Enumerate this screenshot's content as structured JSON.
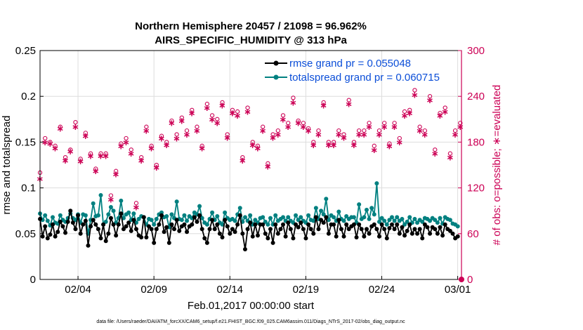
{
  "chart_data": {
    "type": "line",
    "title_line1": "Northern Hemisphere 20457 / 21098 = 96.962%",
    "title_line2": "AIRS_SPECIFIC_HUMIDITY @ 313 hPa",
    "xlabel": "Feb.01,2017 00:00:00 start",
    "ylabel_left": "rmse and totalspread",
    "ylabel_right": "# of obs: o=possible; ∗=evaluated",
    "footer": "data file: /Users/raeder/DAI/ATM_forcXX/CAM6_setup/f.e21.FHIST_BGC.f09_025.CAM6assim.011/Diags_NTrS_2017-02/obs_diag_output.nc",
    "xlim": [
      0.5,
      28.25
    ],
    "ylim_left": [
      0,
      0.25
    ],
    "ylim_right": [
      0,
      300
    ],
    "x_ticks": [
      3,
      8,
      13,
      18,
      23,
      28
    ],
    "x_tick_labels": [
      "02/04",
      "02/09",
      "02/14",
      "02/19",
      "02/24",
      "03/01"
    ],
    "y_ticks_left": [
      0,
      0.05,
      0.1,
      0.15,
      0.2,
      0.25
    ],
    "y_tick_labels_left": [
      "0",
      "0.05",
      "0.1",
      "0.15",
      "0.2",
      "0.25"
    ],
    "y_ticks_right": [
      0,
      60,
      120,
      180,
      240,
      300
    ],
    "y_tick_labels_right": [
      "0",
      "60",
      "120",
      "180",
      "240",
      "300"
    ],
    "colors": {
      "rmse": "#000000",
      "spread": "#008080",
      "obs": "#cc0055",
      "legend_text": "#0b4ed8",
      "grid": "#dddddd"
    },
    "series": [
      {
        "name": "rmse grand pr = 0.055048",
        "key": "rmse",
        "values": [
          0.066,
          0.047,
          0.058,
          0.045,
          0.049,
          0.06,
          0.047,
          0.052,
          0.063,
          0.058,
          0.051,
          0.063,
          0.075,
          0.062,
          0.055,
          0.07,
          0.05,
          0.06,
          0.064,
          0.037,
          0.058,
          0.065,
          0.06,
          0.055,
          0.045,
          0.06,
          0.042,
          0.05,
          0.067,
          0.06,
          0.048,
          0.06,
          0.072,
          0.055,
          0.058,
          0.062,
          0.053,
          0.065,
          0.055,
          0.048,
          0.046,
          0.068,
          0.046,
          0.058,
          0.055,
          0.04,
          0.055,
          0.06,
          0.07,
          0.052,
          0.057,
          0.04,
          0.06,
          0.055,
          0.065,
          0.053,
          0.058,
          0.06,
          0.052,
          0.058,
          0.06,
          0.068,
          0.063,
          0.07,
          0.055,
          0.045,
          0.04,
          0.055,
          0.065,
          0.055,
          0.06,
          0.05,
          0.046,
          0.065,
          0.058,
          0.05,
          0.055,
          0.052,
          0.06,
          0.07,
          0.05,
          0.033,
          0.055,
          0.062,
          0.047,
          0.06,
          0.048,
          0.06,
          0.06,
          0.05,
          0.045,
          0.055,
          0.04,
          0.06,
          0.05,
          0.055,
          0.06,
          0.047,
          0.062,
          0.055,
          0.045,
          0.06,
          0.057,
          0.062,
          0.055,
          0.045,
          0.06,
          0.055,
          0.05,
          0.068,
          0.055,
          0.065,
          0.062,
          0.068,
          0.05,
          0.06,
          0.06,
          0.047,
          0.065,
          0.055,
          0.047,
          0.06,
          0.055,
          0.058,
          0.06,
          0.046,
          0.06,
          0.055,
          0.047,
          0.055,
          0.05,
          0.058,
          0.06,
          0.055,
          0.047,
          0.06,
          0.055,
          0.045,
          0.056,
          0.06,
          0.055,
          0.06,
          0.05,
          0.057,
          0.048,
          0.053,
          0.06,
          0.05,
          0.055,
          0.05,
          0.055,
          0.045,
          0.06,
          0.057,
          0.05,
          0.057,
          0.055,
          0.05,
          0.057,
          0.048,
          0.06,
          0.055,
          0.053,
          0.05,
          0.045,
          0.047
        ]
      },
      {
        "name": "totalspread grand pr = 0.060715",
        "key": "spread",
        "values": [
          0.072,
          0.065,
          0.07,
          0.064,
          0.059,
          0.068,
          0.062,
          0.061,
          0.07,
          0.065,
          0.063,
          0.067,
          0.072,
          0.067,
          0.065,
          0.071,
          0.062,
          0.071,
          0.07,
          0.05,
          0.065,
          0.083,
          0.069,
          0.07,
          0.092,
          0.06,
          0.063,
          0.071,
          0.079,
          0.075,
          0.062,
          0.067,
          0.086,
          0.067,
          0.071,
          0.073,
          0.065,
          0.072,
          0.062,
          0.066,
          0.069,
          0.068,
          0.06,
          0.066,
          0.065,
          0.06,
          0.066,
          0.071,
          0.073,
          0.068,
          0.069,
          0.057,
          0.071,
          0.067,
          0.085,
          0.066,
          0.065,
          0.07,
          0.064,
          0.069,
          0.067,
          0.073,
          0.071,
          0.08,
          0.067,
          0.062,
          0.06,
          0.066,
          0.073,
          0.065,
          0.069,
          0.062,
          0.06,
          0.073,
          0.067,
          0.065,
          0.066,
          0.064,
          0.071,
          0.078,
          0.063,
          0.068,
          0.064,
          0.07,
          0.06,
          0.065,
          0.062,
          0.067,
          0.068,
          0.063,
          0.06,
          0.067,
          0.06,
          0.07,
          0.064,
          0.066,
          0.068,
          0.064,
          0.068,
          0.064,
          0.062,
          0.07,
          0.065,
          0.068,
          0.064,
          0.062,
          0.07,
          0.065,
          0.064,
          0.078,
          0.066,
          0.075,
          0.071,
          0.088,
          0.065,
          0.07,
          0.068,
          0.064,
          0.074,
          0.066,
          0.064,
          0.069,
          0.066,
          0.068,
          0.068,
          0.062,
          0.082,
          0.066,
          0.068,
          0.076,
          0.066,
          0.078,
          0.071,
          0.105,
          0.063,
          0.067,
          0.064,
          0.06,
          0.065,
          0.068,
          0.064,
          0.068,
          0.064,
          0.066,
          0.06,
          0.063,
          0.068,
          0.062,
          0.066,
          0.062,
          0.065,
          0.063,
          0.067,
          0.066,
          0.064,
          0.067,
          0.065,
          0.062,
          0.067,
          0.061,
          0.068,
          0.066,
          0.065,
          0.061,
          0.06,
          0.058
        ]
      },
      {
        "name": "# obs possible",
        "key": "obs_possible",
        "values": [
          140,
          160,
          185,
          185,
          180,
          185,
          175,
          180,
          200,
          205,
          160,
          158,
          170,
          178,
          206,
          155,
          158,
          186,
          192,
          180,
          165,
          138,
          145,
          162,
          165,
          158,
          165,
          100,
          110,
          125,
          142,
          160,
          178,
          160,
          185,
          160,
          170,
          110,
          100,
          110,
          160,
          175,
          200,
          210,
          175,
          195,
          150,
          200,
          188,
          220,
          180,
          205,
          208,
          185,
          190,
          205,
          212,
          170,
          195,
          205,
          222,
          212,
          200,
          218,
          175,
          180,
          230,
          195,
          215,
          218,
          210,
          218,
          232,
          225,
          190,
          200,
          222,
          228,
          220,
          196,
          160,
          168,
          225,
          217,
          180,
          205,
          175,
          220,
          200,
          210,
          152,
          198,
          190,
          215,
          195,
          212,
          215,
          195,
          205,
          215,
          238,
          222,
          208,
          212,
          205,
          205,
          198,
          225,
          180,
          212,
          195,
          225,
          232,
          225,
          180,
          180,
          180,
          185,
          195,
          210,
          190,
          178,
          235,
          178,
          180,
          188,
          195,
          225,
          195,
          218,
          205,
          195,
          175,
          218,
          195,
          200,
          205,
          195,
          178,
          195,
          205,
          200,
          185,
          150,
          220,
          212,
          222,
          195,
          248,
          212,
          200,
          222,
          195,
          212,
          240,
          200,
          170,
          215,
          218,
          232,
          225,
          170,
          165,
          170,
          195,
          192,
          205,
          180
        ]
      },
      {
        "name": "# obs evaluated",
        "key": "obs_evaluated",
        "values": [
          132,
          155,
          180,
          180,
          178,
          180,
          172,
          178,
          198,
          200,
          156,
          155,
          168,
          175,
          200,
          152,
          155,
          182,
          188,
          178,
          162,
          133,
          142,
          158,
          162,
          155,
          162,
          95,
          105,
          120,
          138,
          156,
          175,
          156,
          180,
          155,
          165,
          105,
          95,
          105,
          156,
          170,
          195,
          205,
          172,
          190,
          147,
          195,
          185,
          215,
          176,
          200,
          205,
          180,
          185,
          200,
          208,
          165,
          190,
          200,
          218,
          208,
          195,
          215,
          172,
          176,
          225,
          190,
          210,
          215,
          205,
          215,
          228,
          220,
          186,
          195,
          218,
          225,
          215,
          192,
          156,
          165,
          220,
          212,
          176,
          200,
          172,
          215,
          195,
          205,
          148,
          195,
          186,
          210,
          190,
          208,
          210,
          190,
          200,
          210,
          232,
          218,
          205,
          208,
          200,
          200,
          195,
          220,
          176,
          208,
          190,
          220,
          228,
          220,
          176,
          176,
          176,
          180,
          190,
          205,
          186,
          175,
          230,
          175,
          176,
          185,
          190,
          220,
          190,
          215,
          200,
          190,
          170,
          215,
          190,
          195,
          200,
          190,
          175,
          190,
          200,
          195,
          180,
          145,
          215,
          208,
          218,
          190,
          242,
          208,
          195,
          218,
          190,
          208,
          235,
          195,
          165,
          210,
          215,
          228,
          220,
          165,
          160,
          165,
          190,
          188,
          200,
          175
        ]
      }
    ]
  }
}
